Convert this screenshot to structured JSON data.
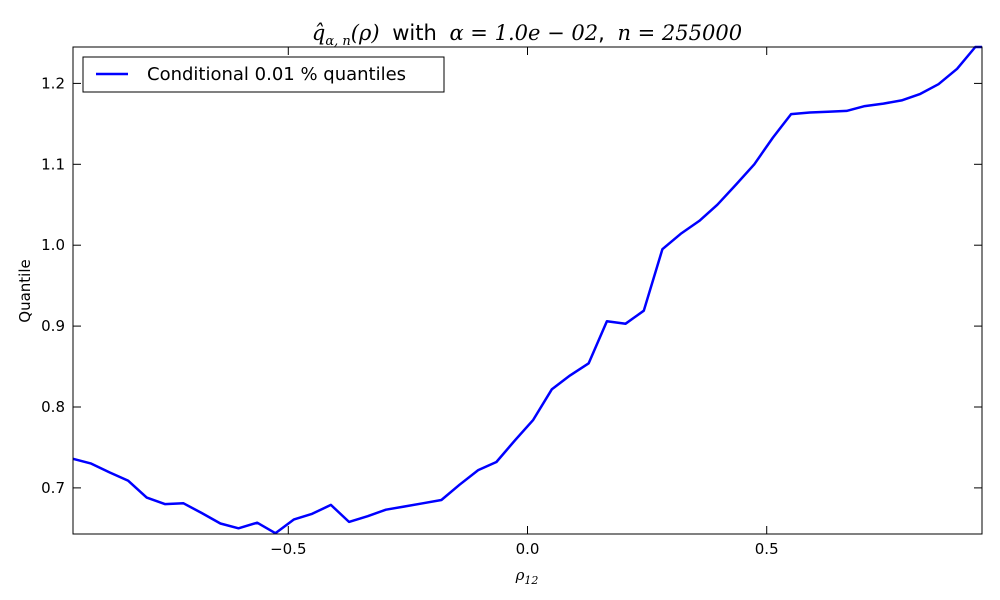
{
  "chart_data": {
    "type": "line",
    "title": {
      "q_symbol": "q̂",
      "q_subscript": "α, n",
      "rho_arg": "(ρ)",
      "with_text": "with",
      "alpha_expr": "α = 1.0e − 02",
      "comma_text": ",",
      "n_expr": "n = 255000"
    },
    "xlabel": {
      "symbol": "ρ",
      "subscript": "12"
    },
    "ylabel": "Quantile",
    "xlim": [
      -0.95,
      0.95
    ],
    "ylim": [
      0.643,
      1.245
    ],
    "xticks": [
      {
        "value": -0.5,
        "label": "−0.5"
      },
      {
        "value": 0.0,
        "label": "0.0"
      },
      {
        "value": 0.5,
        "label": "0.5"
      }
    ],
    "yticks": [
      {
        "value": 0.7,
        "label": "0.7"
      },
      {
        "value": 0.8,
        "label": "0.8"
      },
      {
        "value": 0.9,
        "label": "0.9"
      },
      {
        "value": 1.0,
        "label": "1.0"
      },
      {
        "value": 1.1,
        "label": "1.1"
      },
      {
        "value": 1.2,
        "label": "1.2"
      }
    ],
    "grid": false,
    "legend_position": "top-left",
    "series": [
      {
        "name": "Conditional 0.01 % quantiles",
        "color": "#0000ff",
        "x": [
          -0.95,
          -0.912,
          -0.873,
          -0.835,
          -0.796,
          -0.758,
          -0.719,
          -0.681,
          -0.642,
          -0.604,
          -0.565,
          -0.527,
          -0.488,
          -0.45,
          -0.411,
          -0.373,
          -0.334,
          -0.296,
          -0.257,
          -0.219,
          -0.18,
          -0.142,
          -0.103,
          -0.065,
          -0.026,
          0.012,
          0.051,
          0.089,
          0.128,
          0.166,
          0.205,
          0.243,
          0.282,
          0.32,
          0.359,
          0.397,
          0.436,
          0.474,
          0.513,
          0.551,
          0.59,
          0.628,
          0.667,
          0.705,
          0.744,
          0.782,
          0.821,
          0.859,
          0.898,
          0.936,
          0.95
        ],
        "y": [
          0.736,
          0.73,
          0.719,
          0.709,
          0.688,
          0.68,
          0.681,
          0.669,
          0.656,
          0.65,
          0.657,
          0.644,
          0.661,
          0.668,
          0.679,
          0.658,
          0.665,
          0.673,
          0.677,
          0.681,
          0.685,
          0.704,
          0.722,
          0.732,
          0.759,
          0.784,
          0.822,
          0.839,
          0.854,
          0.906,
          0.903,
          0.919,
          0.995,
          1.014,
          1.03,
          1.05,
          1.075,
          1.1,
          1.133,
          1.162,
          1.164,
          1.165,
          1.166,
          1.172,
          1.175,
          1.179,
          1.187,
          1.199,
          1.218,
          1.245,
          1.245
        ]
      }
    ]
  }
}
